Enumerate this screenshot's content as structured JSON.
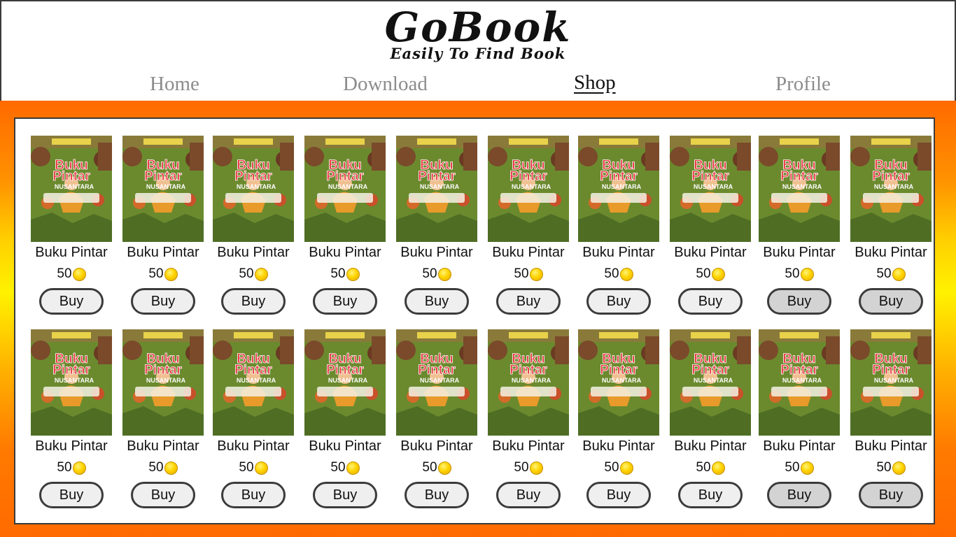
{
  "header": {
    "logo_title": "GoBook",
    "logo_tagline": "Easily To Find Book",
    "nav": [
      {
        "label": "Home",
        "active": false
      },
      {
        "label": "Download",
        "active": false
      },
      {
        "label": "Shop",
        "active": true
      },
      {
        "label": "Profile",
        "active": false
      }
    ]
  },
  "shop": {
    "rows": [
      [
        {
          "title": "Buku Pintar",
          "price": "50",
          "buy_label": "Buy"
        },
        {
          "title": "Buku Pintar",
          "price": "50",
          "buy_label": "Buy"
        },
        {
          "title": "Buku Pintar",
          "price": "50",
          "buy_label": "Buy"
        },
        {
          "title": "Buku Pintar",
          "price": "50",
          "buy_label": "Buy"
        },
        {
          "title": "Buku Pintar",
          "price": "50",
          "buy_label": "Buy"
        },
        {
          "title": "Buku Pintar",
          "price": "50",
          "buy_label": "Buy"
        },
        {
          "title": "Buku Pintar",
          "price": "50",
          "buy_label": "Buy"
        },
        {
          "title": "Buku Pintar",
          "price": "50",
          "buy_label": "Buy"
        },
        {
          "title": "Buku Pintar",
          "price": "50",
          "buy_label": "Buy"
        },
        {
          "title": "Buku Pintar",
          "price": "50",
          "buy_label": "Buy"
        }
      ],
      [
        {
          "title": "Buku Pintar",
          "price": "50",
          "buy_label": "Buy"
        },
        {
          "title": "Buku Pintar",
          "price": "50",
          "buy_label": "Buy"
        },
        {
          "title": "Buku Pintar",
          "price": "50",
          "buy_label": "Buy"
        },
        {
          "title": "Buku Pintar",
          "price": "50",
          "buy_label": "Buy"
        },
        {
          "title": "Buku Pintar",
          "price": "50",
          "buy_label": "Buy"
        },
        {
          "title": "Buku Pintar",
          "price": "50",
          "buy_label": "Buy"
        },
        {
          "title": "Buku Pintar",
          "price": "50",
          "buy_label": "Buy"
        },
        {
          "title": "Buku Pintar",
          "price": "50",
          "buy_label": "Buy"
        },
        {
          "title": "Buku Pintar",
          "price": "50",
          "buy_label": "Buy"
        },
        {
          "title": "Buku Pintar",
          "price": "50",
          "buy_label": "Buy"
        }
      ]
    ],
    "cover_text": {
      "line1": "Buku",
      "line2": "Pintar",
      "line3": "NUSANTARA"
    },
    "currency_icon": "coin-icon",
    "colors": {
      "frame_orange": "#ff6a00",
      "frame_yellow": "#fff200",
      "cover_green": "#6b8a2e",
      "cover_title_red": "#e8303a"
    }
  }
}
